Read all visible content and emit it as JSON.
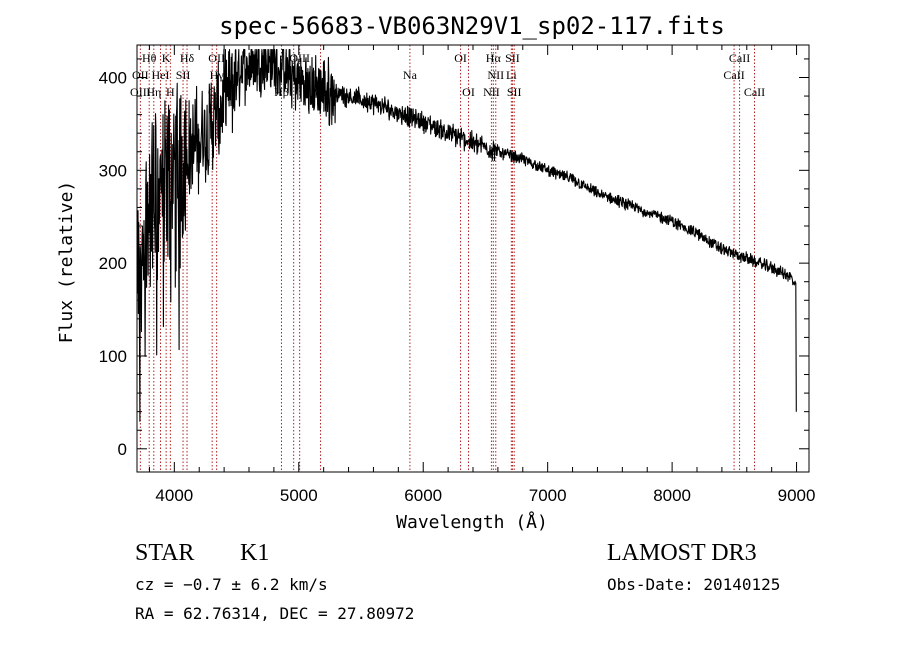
{
  "chart_data": {
    "type": "line",
    "title": "spec-56683-VB063N29V1_sp02-117.fits",
    "xlabel": "Wavelength (Å)",
    "ylabel": "Flux (relative)",
    "xlim": [
      3700,
      9100
    ],
    "ylim": [
      -25,
      435
    ],
    "xticks": [
      4000,
      5000,
      6000,
      7000,
      8000,
      9000
    ],
    "yticks": [
      0,
      100,
      200,
      300,
      400
    ],
    "spectrum_envelope": {
      "x": [
        3700,
        3750,
        3800,
        3850,
        3900,
        3950,
        4000,
        4050,
        4100,
        4200,
        4300,
        4400,
        4500,
        4600,
        4700,
        4800,
        4900,
        5000,
        5100,
        5200,
        5400,
        5600,
        5800,
        6000,
        6200,
        6400,
        6600,
        6800,
        7000,
        7200,
        7400,
        7600,
        7800,
        8000,
        8200,
        8400,
        8600,
        8800,
        8950,
        9000
      ],
      "y": [
        150,
        230,
        260,
        270,
        280,
        290,
        300,
        310,
        320,
        330,
        350,
        370,
        400,
        415,
        420,
        415,
        405,
        395,
        390,
        385,
        380,
        372,
        362,
        352,
        340,
        330,
        320,
        312,
        300,
        290,
        275,
        265,
        255,
        245,
        232,
        215,
        205,
        195,
        185,
        175
      ]
    },
    "spectral_lines": [
      {
        "label": "Hθ",
        "wave": 3798,
        "row": 0
      },
      {
        "label": "K",
        "wave": 3934,
        "row": 0
      },
      {
        "label": "Hδ",
        "wave": 4102,
        "row": 0
      },
      {
        "label": "OII",
        "wave": 4340,
        "row": 0
      },
      {
        "label": "OIII",
        "wave": 5007,
        "row": 0
      },
      {
        "label": "OI",
        "wave": 6300,
        "row": 0
      },
      {
        "label": "Hα",
        "wave": 6563,
        "row": 0
      },
      {
        "label": "SII",
        "wave": 6717,
        "row": 0
      },
      {
        "label": "CaII",
        "wave": 8542,
        "row": 0
      },
      {
        "label": "OII",
        "wave": 3727,
        "row": 1
      },
      {
        "label": "HeI",
        "wave": 3889,
        "row": 1
      },
      {
        "label": "SII",
        "wave": 4070,
        "row": 1
      },
      {
        "label": "Hγ",
        "wave": 4340,
        "row": 1
      },
      {
        "label": "OIII",
        "wave": 4959,
        "row": 1
      },
      {
        "label": "Na",
        "wave": 5893,
        "row": 1
      },
      {
        "label": "NII",
        "wave": 6583,
        "row": 1
      },
      {
        "label": "Li",
        "wave": 6708,
        "row": 1
      },
      {
        "label": "CaII",
        "wave": 8498,
        "row": 1
      },
      {
        "label": "OIII",
        "wave": 3727,
        "row": 2
      },
      {
        "label": "Hη",
        "wave": 3835,
        "row": 2
      },
      {
        "label": "H",
        "wave": 3968,
        "row": 2
      },
      {
        "label": "G",
        "wave": 4304,
        "row": 2
      },
      {
        "label": "Hβ",
        "wave": 4861,
        "row": 2
      },
      {
        "label": "Mg",
        "wave": 5175,
        "row": 2
      },
      {
        "label": "OI",
        "wave": 6364,
        "row": 2
      },
      {
        "label": "NII",
        "wave": 6548,
        "row": 2
      },
      {
        "label": "SII",
        "wave": 6731,
        "row": 2
      },
      {
        "label": "CaII",
        "wave": 8662,
        "row": 2
      }
    ]
  },
  "info": {
    "object_class": "STAR",
    "subclass": "K1",
    "cz": "cz = −0.7 ± 6.2 km/s",
    "coords": "RA =  62.76314, DEC =  27.80972",
    "survey": "LAMOST DR3",
    "obs_date": "Obs-Date: 20140125"
  },
  "colors": {
    "spectrum": "#000000",
    "lines": "#b22222",
    "axes": "#000000"
  }
}
